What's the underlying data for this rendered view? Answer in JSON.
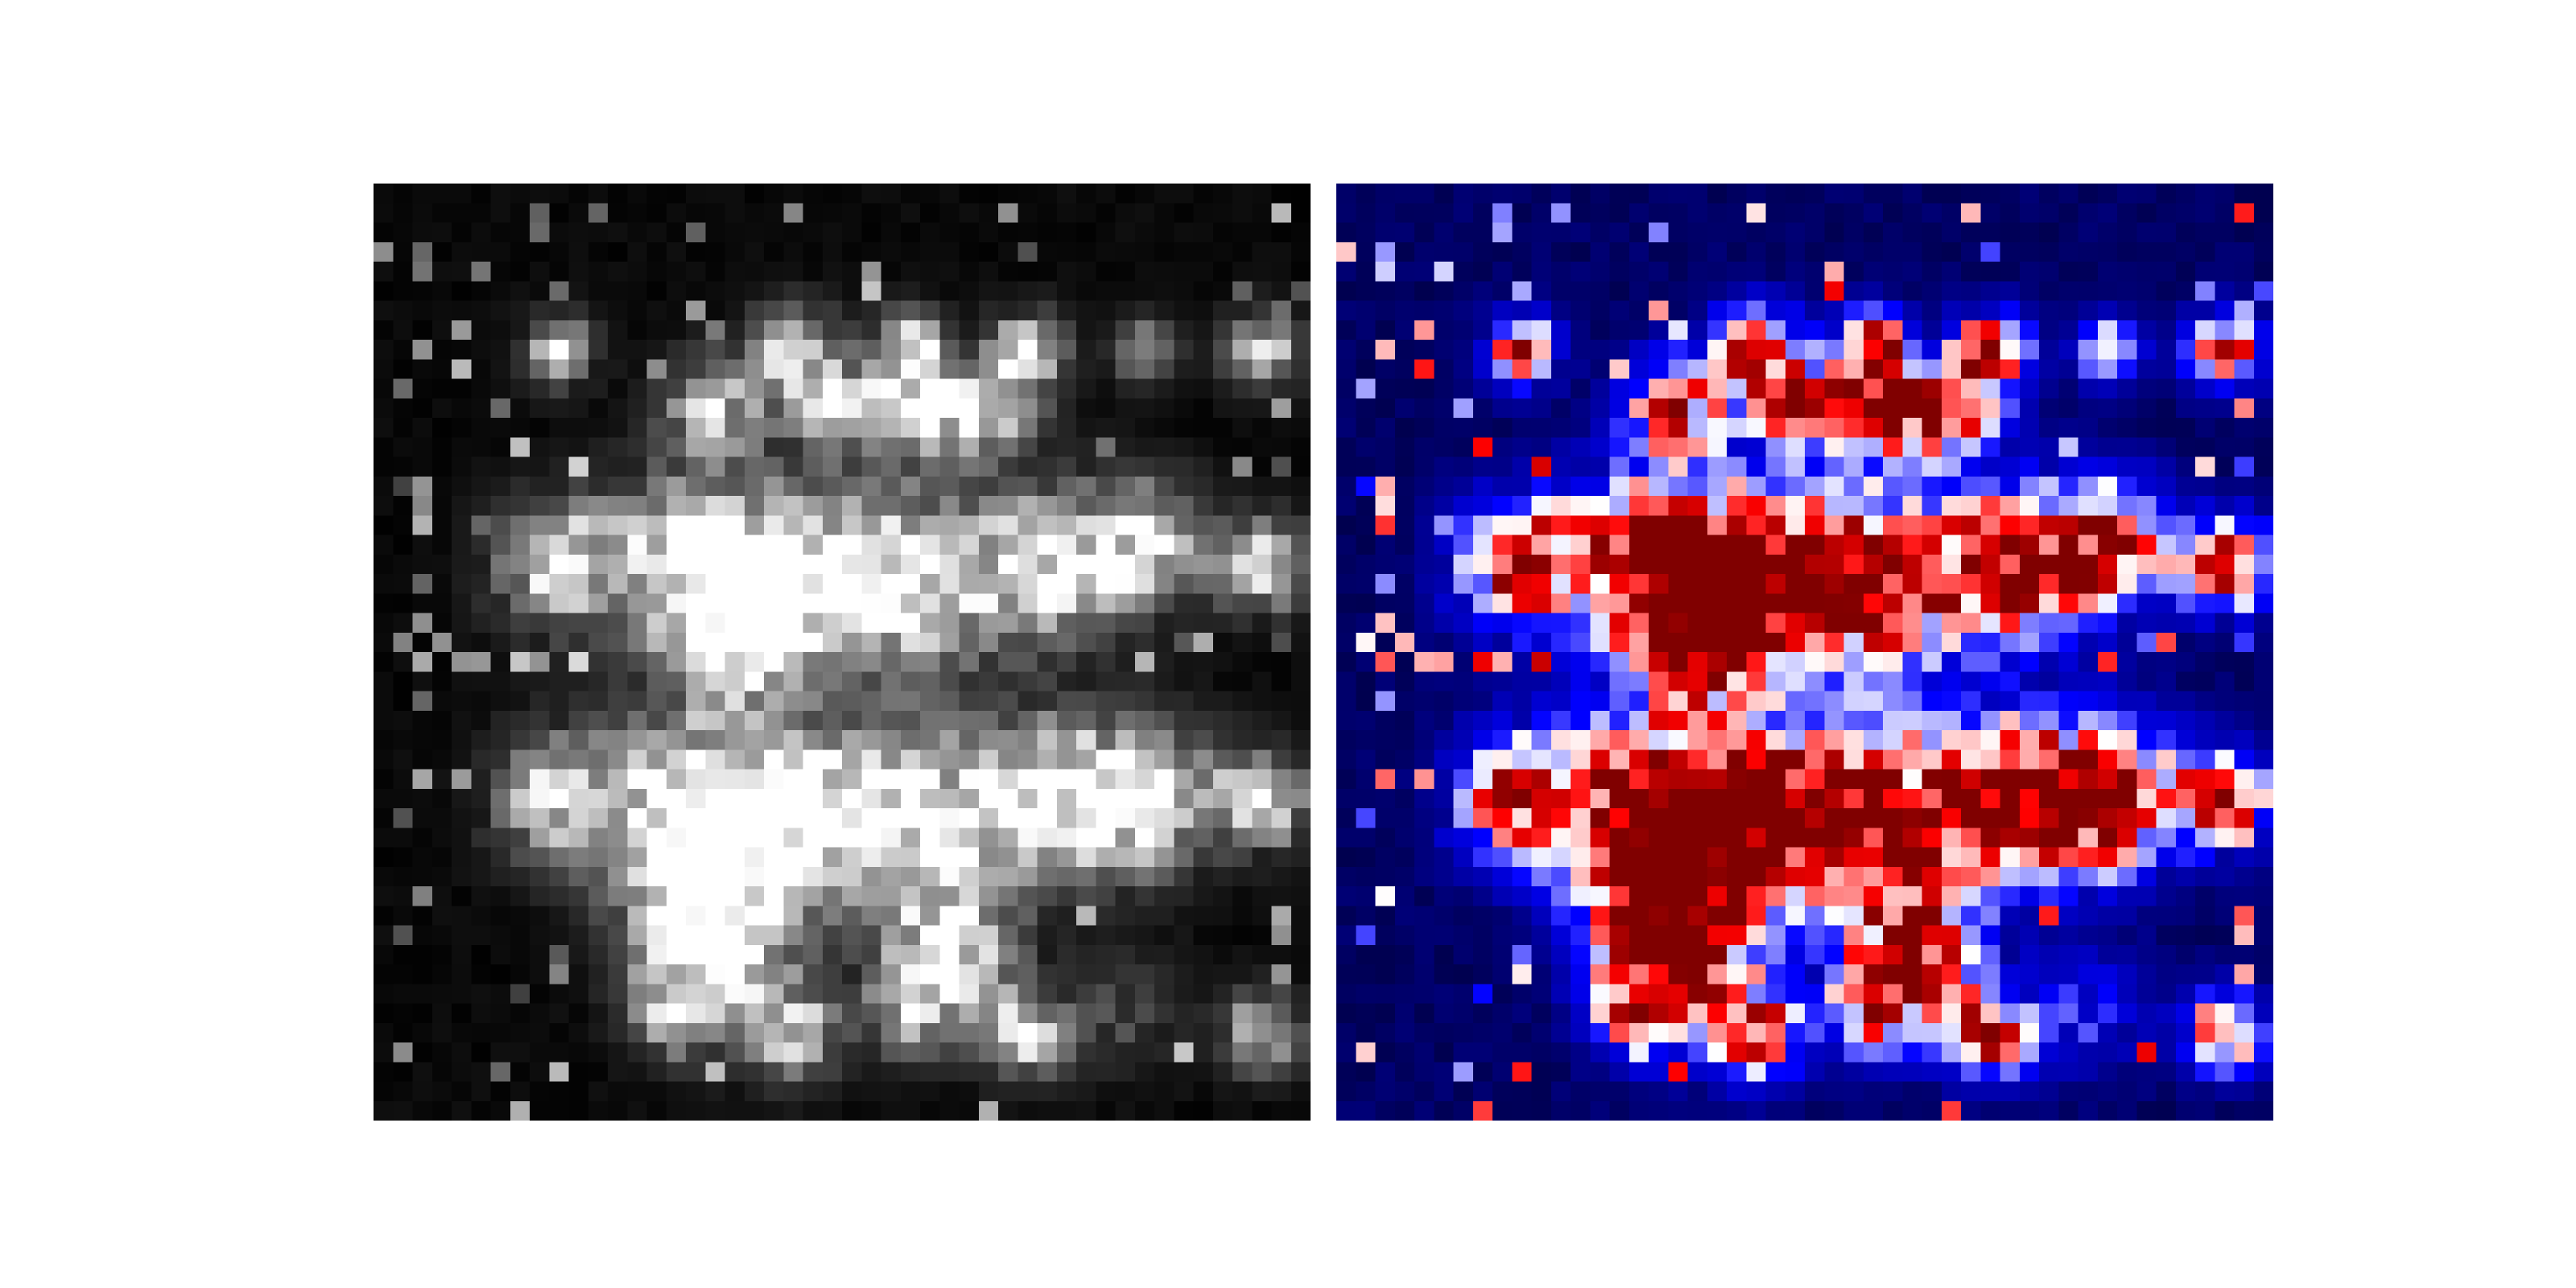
{
  "chart_data": [
    {
      "type": "heatmap",
      "colormap": "gray",
      "vmin": 0,
      "vmax": 1,
      "grid_size": [
        48,
        48
      ],
      "axes": "off",
      "blobs": [
        {
          "row": 8,
          "col": 9,
          "r": 1.2,
          "amp": 0.9
        },
        {
          "row": 8,
          "col": 21,
          "r": 1.5,
          "amp": 1.0
        },
        {
          "row": 8,
          "col": 27,
          "r": 1.3,
          "amp": 0.9
        },
        {
          "row": 8,
          "col": 33,
          "r": 1.3,
          "amp": 0.9
        },
        {
          "row": 8,
          "col": 39,
          "r": 1.1,
          "amp": 0.7
        },
        {
          "row": 8,
          "col": 45,
          "r": 1.3,
          "amp": 0.9
        },
        {
          "row": 11,
          "col": 17,
          "r": 1.8,
          "amp": 0.8
        },
        {
          "row": 11,
          "col": 23,
          "r": 1.6,
          "amp": 0.8
        },
        {
          "row": 11,
          "col": 27,
          "r": 1.8,
          "amp": 0.95
        },
        {
          "row": 11,
          "col": 31,
          "r": 1.8,
          "amp": 0.85
        },
        {
          "row": 19,
          "col": 9,
          "r": 2.2,
          "amp": 0.95
        },
        {
          "row": 19,
          "col": 16,
          "r": 3.2,
          "amp": 1.0
        },
        {
          "row": 20,
          "col": 21,
          "r": 3.0,
          "amp": 1.0
        },
        {
          "row": 20,
          "col": 27,
          "r": 3.2,
          "amp": 1.0
        },
        {
          "row": 19,
          "col": 34,
          "r": 2.6,
          "amp": 1.0
        },
        {
          "row": 18,
          "col": 39,
          "r": 2.2,
          "amp": 0.9
        },
        {
          "row": 19,
          "col": 45,
          "r": 1.6,
          "amp": 0.95
        },
        {
          "row": 23,
          "col": 18,
          "r": 2.0,
          "amp": 0.95
        },
        {
          "row": 31,
          "col": 9,
          "r": 2.2,
          "amp": 0.95
        },
        {
          "row": 31,
          "col": 16,
          "r": 3.2,
          "amp": 1.0
        },
        {
          "row": 32,
          "col": 21,
          "r": 3.0,
          "amp": 1.0
        },
        {
          "row": 32,
          "col": 27,
          "r": 3.2,
          "amp": 1.0
        },
        {
          "row": 31,
          "col": 34,
          "r": 2.8,
          "amp": 1.0
        },
        {
          "row": 31,
          "col": 39,
          "r": 2.6,
          "amp": 1.0
        },
        {
          "row": 31,
          "col": 45,
          "r": 1.6,
          "amp": 0.95
        },
        {
          "row": 35,
          "col": 16,
          "r": 2.6,
          "amp": 1.0
        },
        {
          "row": 39,
          "col": 17,
          "r": 2.6,
          "amp": 1.0
        },
        {
          "row": 39,
          "col": 29,
          "r": 2.4,
          "amp": 1.0
        },
        {
          "row": 42,
          "col": 15,
          "r": 1.6,
          "amp": 0.6
        },
        {
          "row": 42,
          "col": 27,
          "r": 1.6,
          "amp": 0.6
        },
        {
          "row": 43,
          "col": 21,
          "r": 1.6,
          "amp": 0.9
        },
        {
          "row": 43,
          "col": 33,
          "r": 1.5,
          "amp": 0.9
        },
        {
          "row": 43,
          "col": 45,
          "r": 1.4,
          "amp": 0.85
        },
        {
          "row": 42,
          "col": 38,
          "r": 2.0,
          "amp": 0.3
        }
      ]
    },
    {
      "type": "heatmap",
      "colormap": "seismic",
      "vmin": 0,
      "vmax": 1,
      "grid_size": [
        48,
        48
      ],
      "axes": "off",
      "same_data_as": "gray panel"
    }
  ]
}
